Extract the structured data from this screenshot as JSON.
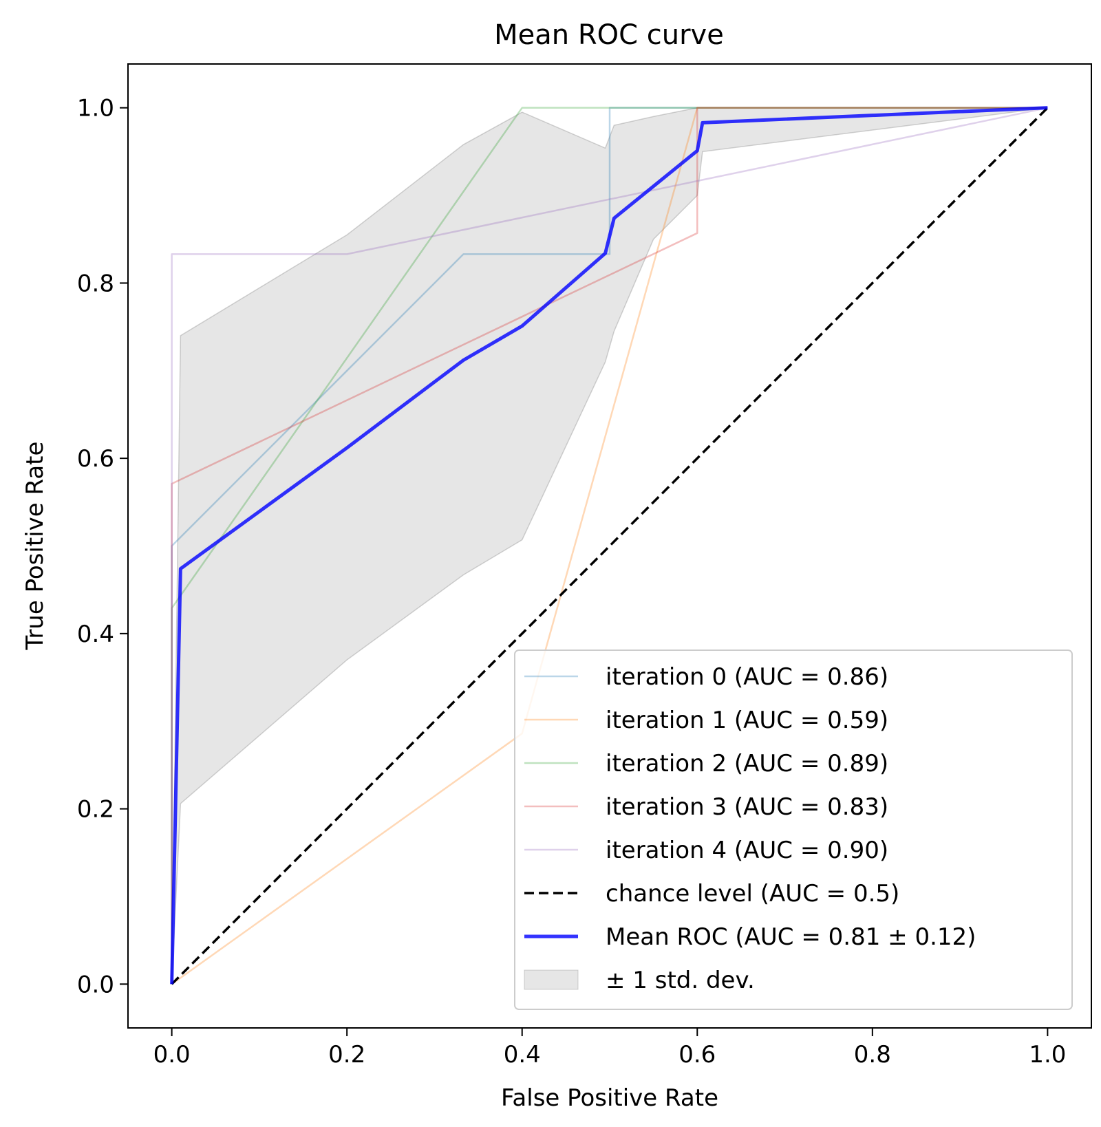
{
  "chart_data": {
    "type": "line",
    "title": "Mean ROC curve",
    "xlabel": "False Positive Rate",
    "ylabel": "True Positive Rate",
    "xlim": [
      -0.05,
      1.05
    ],
    "ylim": [
      -0.05,
      1.05
    ],
    "xticks": [
      "0.0",
      "0.2",
      "0.4",
      "0.6",
      "0.8",
      "1.0"
    ],
    "yticks": [
      "0.0",
      "0.2",
      "0.4",
      "0.6",
      "0.8",
      "1.0"
    ],
    "grid": false,
    "legend_position": "lower right",
    "series": [
      {
        "name": "iteration 0 (AUC = 0.86)",
        "color": "#1f77b4",
        "opacity": 0.3,
        "x": [
          0.0,
          0.0,
          0.333,
          0.5,
          0.5,
          0.5,
          0.5,
          0.6,
          0.6,
          1.0
        ],
        "y": [
          0.0,
          0.5,
          0.833,
          0.833,
          0.9,
          0.98,
          1.0,
          1.0,
          1.0,
          1.0
        ]
      },
      {
        "name": "iteration 1 (AUC = 0.59)",
        "color": "#ff7f0e",
        "opacity": 0.3,
        "x": [
          0.0,
          0.4,
          0.6,
          0.6,
          1.0
        ],
        "y": [
          0.0,
          0.286,
          1.0,
          1.0,
          1.0
        ]
      },
      {
        "name": "iteration 2 (AUC = 0.89)",
        "color": "#2ca02c",
        "opacity": 0.3,
        "x": [
          0.0,
          0.0,
          0.4,
          1.0
        ],
        "y": [
          0.0,
          0.429,
          1.0,
          1.0
        ]
      },
      {
        "name": "iteration 3 (AUC = 0.83)",
        "color": "#d62728",
        "opacity": 0.3,
        "x": [
          0.0,
          0.0,
          0.6,
          0.6,
          1.0
        ],
        "y": [
          0.0,
          0.571,
          0.857,
          1.0,
          1.0
        ]
      },
      {
        "name": "iteration 4 (AUC = 0.90)",
        "color": "#9467bd",
        "opacity": 0.3,
        "x": [
          0.0,
          0.0,
          0.2,
          1.0
        ],
        "y": [
          0.0,
          0.833,
          0.833,
          1.0
        ]
      },
      {
        "name": "chance level (AUC = 0.5)",
        "color": "#000000",
        "dashed": true,
        "x": [
          0.0,
          1.0
        ],
        "y": [
          0.0,
          1.0
        ]
      },
      {
        "name": "Mean ROC (AUC = 0.81 ± 0.12)",
        "color": "#0000ff",
        "opacity": 0.8,
        "x": [
          0.0,
          0.01,
          0.2,
          0.333,
          0.4,
          0.495,
          0.505,
          0.6,
          0.606,
          1.0
        ],
        "y": [
          0.0,
          0.474,
          0.612,
          0.712,
          0.751,
          0.834,
          0.874,
          0.951,
          0.983,
          1.0
        ]
      }
    ],
    "band": {
      "name": "± 1 std. dev.",
      "color": "#808080",
      "opacity": 0.2,
      "x": [
        0.0,
        0.01,
        0.2,
        0.333,
        0.4,
        0.495,
        0.505,
        0.55,
        0.6,
        0.606,
        1.0
      ],
      "upper": [
        0.0,
        0.74,
        0.855,
        0.958,
        0.995,
        0.954,
        0.98,
        0.99,
        1.0,
        1.0,
        1.0
      ],
      "lower": [
        0.0,
        0.206,
        0.37,
        0.467,
        0.507,
        0.71,
        0.745,
        0.85,
        0.9,
        0.95,
        1.0
      ]
    }
  }
}
